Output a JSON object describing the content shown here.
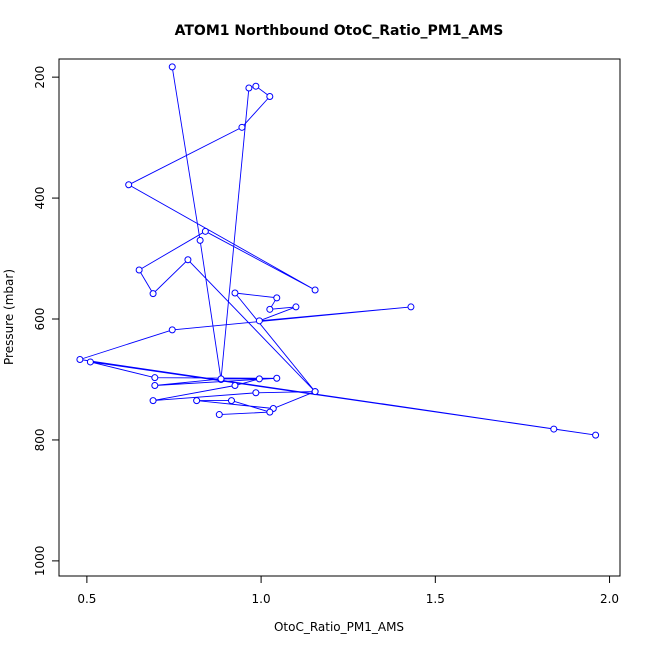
{
  "chart_data": {
    "type": "line",
    "title": "ATOM1 Northbound OtoC_Ratio_PM1_AMS",
    "xlabel": "OtoC_Ratio_PM1_AMS",
    "ylabel": "Pressure (mbar)",
    "xlim": [
      0.42,
      2.03
    ],
    "ylim": [
      1025,
      170
    ],
    "y_reversed": true,
    "grid": false,
    "xticks": [
      0.5,
      1.0,
      1.5,
      2.0
    ],
    "xtick_labels": [
      "0.5",
      "1.0",
      "1.5",
      "2.0"
    ],
    "yticks": [
      200,
      400,
      600,
      800,
      1000
    ],
    "ytick_labels": [
      "200",
      "400",
      "600",
      "800",
      "1000"
    ],
    "series_color": "#0000ff",
    "series": [
      {
        "style": "line+open-circle",
        "x": [
          0.745,
          0.825,
          0.885,
          0.965,
          0.985,
          1.025,
          0.945,
          0.62,
          1.155,
          0.84,
          0.65,
          0.69,
          0.79,
          1.155,
          0.925,
          1.045,
          1.025,
          1.1,
          0.995,
          1.43,
          0.745,
          0.48,
          1.96,
          1.84,
          0.51,
          0.695,
          1.045,
          0.695,
          0.885,
          0.995,
          0.925,
          0.69,
          0.985,
          1.155,
          1.035,
          0.815,
          0.915,
          1.025,
          0.88
        ],
        "y": [
          183,
          470,
          700,
          218,
          215,
          232,
          283,
          378,
          552,
          455,
          519,
          558,
          502,
          720,
          557,
          565,
          584,
          580,
          603,
          580,
          618,
          667,
          792,
          782,
          671,
          697,
          698,
          710,
          699,
          699,
          710,
          735,
          722,
          720,
          748,
          735,
          735,
          754,
          758
        ]
      }
    ]
  }
}
